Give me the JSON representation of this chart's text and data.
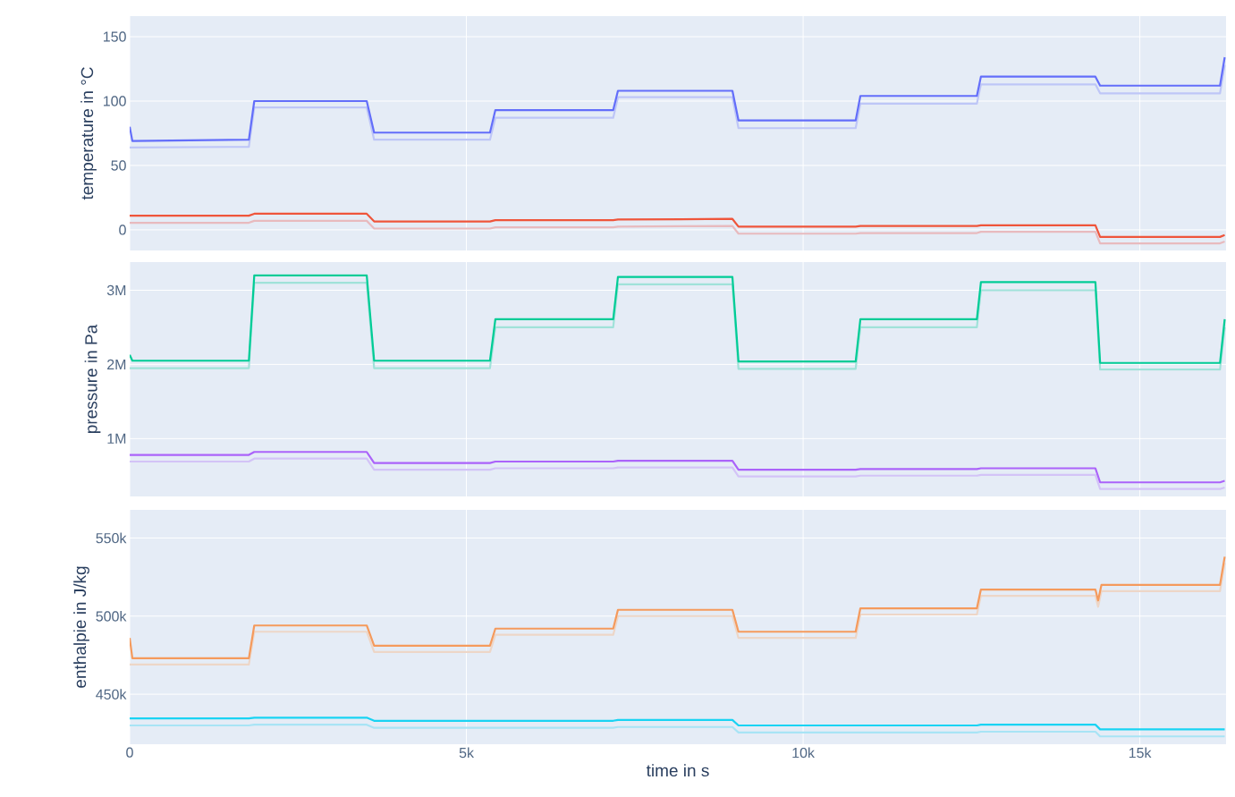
{
  "chart_data": [
    {
      "type": "line",
      "ylabel": "temperature in °C",
      "xlim": [
        0,
        16280
      ],
      "ylim": [
        -16,
        166
      ],
      "yticks": [
        0,
        50,
        100,
        150
      ],
      "xticks": [
        {
          "value": 0,
          "label": null
        },
        {
          "value": 5000,
          "label": null
        },
        {
          "value": 10000,
          "label": null
        },
        {
          "value": 15000,
          "label": null
        }
      ],
      "tick_labels": "y",
      "grid": true,
      "series": [
        {
          "color": "#bec6f7",
          "x": [
            0,
            40,
            1770,
            1850,
            3520,
            3630,
            5350,
            5430,
            7180,
            7250,
            8950,
            9040,
            10780,
            10850,
            12580,
            12640,
            14340,
            14410,
            16190,
            16260
          ],
          "values": [
            64,
            64,
            64.5,
            95,
            95,
            70,
            70,
            87,
            87,
            103,
            103,
            79,
            79,
            98,
            98,
            113,
            113,
            106,
            106,
            128
          ]
        },
        {
          "color": "#e8babe",
          "x": [
            0,
            40,
            1770,
            1850,
            3520,
            3630,
            5350,
            5430,
            7180,
            7250,
            8950,
            9040,
            10780,
            10850,
            12580,
            12640,
            14340,
            14410,
            16190,
            16260
          ],
          "values": [
            5.5,
            5.5,
            5.5,
            7,
            7,
            1,
            1,
            2,
            2,
            2.5,
            3,
            -3,
            -3,
            -2.5,
            -2.5,
            -1.5,
            -1.5,
            -10.5,
            -10.5,
            -9
          ]
        },
        {
          "color": "#636efa",
          "x": [
            0,
            40,
            1770,
            1850,
            3520,
            3630,
            5350,
            5430,
            7180,
            7250,
            8950,
            9040,
            10780,
            10850,
            12580,
            12640,
            14340,
            14410,
            16190,
            16260
          ],
          "values": [
            80,
            69,
            70,
            100,
            100,
            75.5,
            75.5,
            93,
            93,
            108,
            108,
            85,
            85,
            104,
            104,
            119,
            119,
            112,
            112,
            134
          ]
        },
        {
          "color": "#ef553b",
          "x": [
            0,
            40,
            1770,
            1850,
            3520,
            3630,
            5350,
            5430,
            7180,
            7250,
            8950,
            9040,
            10780,
            10850,
            12580,
            12640,
            14340,
            14410,
            16190,
            16260
          ],
          "values": [
            11,
            11,
            11,
            12.5,
            12.5,
            6.5,
            6.5,
            7.5,
            7.5,
            8,
            8.5,
            2.5,
            2.5,
            3,
            3,
            3.5,
            3.5,
            -5.5,
            -5.5,
            -4
          ]
        }
      ]
    },
    {
      "type": "line",
      "ylabel": "pressure in Pa",
      "xlim": [
        0,
        16280
      ],
      "ylim": [
        220000,
        3380000
      ],
      "yticks": [
        {
          "value": 1000000,
          "label": "1M"
        },
        {
          "value": 2000000,
          "label": "2M"
        },
        {
          "value": 3000000,
          "label": "3M"
        }
      ],
      "xticks": [
        {
          "value": 0,
          "label": null
        },
        {
          "value": 5000,
          "label": null
        },
        {
          "value": 10000,
          "label": null
        },
        {
          "value": 15000,
          "label": null
        }
      ],
      "tick_labels": "y",
      "grid": true,
      "series": [
        {
          "color": "#a0e2d9",
          "x": [
            0,
            40,
            1770,
            1850,
            3520,
            3630,
            5350,
            5430,
            7180,
            7250,
            8950,
            9040,
            10780,
            10850,
            12580,
            12640,
            14340,
            14410,
            16190,
            16260
          ],
          "values": [
            1950000,
            1950000,
            1950000,
            3100000,
            3100000,
            1950000,
            1950000,
            2500000,
            2500000,
            3080000,
            3080000,
            1940000,
            1940000,
            2500000,
            2500000,
            3000000,
            3000000,
            1930000,
            1930000,
            2500000
          ]
        },
        {
          "color": "#d3c3f7",
          "x": [
            0,
            40,
            1770,
            1850,
            3520,
            3630,
            5350,
            5430,
            7180,
            7250,
            8950,
            9040,
            10780,
            10850,
            12580,
            12640,
            14340,
            14410,
            16190,
            16260
          ],
          "values": [
            690000,
            690000,
            690000,
            730000,
            730000,
            580000,
            580000,
            600000,
            600000,
            610000,
            610000,
            490000,
            490000,
            500000,
            500000,
            510000,
            510000,
            320000,
            320000,
            340000
          ]
        },
        {
          "color": "#00cc96",
          "x": [
            0,
            40,
            1770,
            1850,
            3520,
            3630,
            5350,
            5430,
            7180,
            7250,
            8950,
            9040,
            10780,
            10850,
            12580,
            12640,
            14340,
            14410,
            16190,
            16260
          ],
          "values": [
            2130000,
            2050000,
            2050000,
            3200000,
            3200000,
            2050000,
            2050000,
            2610000,
            2610000,
            3180000,
            3180000,
            2040000,
            2040000,
            2610000,
            2610000,
            3110000,
            3110000,
            2020000,
            2020000,
            2610000
          ]
        },
        {
          "color": "#ab63fa",
          "x": [
            0,
            40,
            1770,
            1850,
            3520,
            3630,
            5350,
            5430,
            7180,
            7250,
            8950,
            9040,
            10780,
            10850,
            12580,
            12640,
            14340,
            14410,
            16190,
            16260
          ],
          "values": [
            780000,
            780000,
            780000,
            820000,
            820000,
            670000,
            670000,
            690000,
            690000,
            700000,
            700000,
            580000,
            580000,
            590000,
            590000,
            600000,
            600000,
            410000,
            410000,
            430000
          ]
        }
      ]
    },
    {
      "type": "line",
      "ylabel": "enthalpie in J/kg",
      "xlabel": "time in s",
      "xlim": [
        0,
        16280
      ],
      "ylim": [
        418000,
        568000
      ],
      "yticks": [
        {
          "value": 450000,
          "label": "450k"
        },
        {
          "value": 500000,
          "label": "500k"
        },
        {
          "value": 550000,
          "label": "550k"
        }
      ],
      "xticks": [
        {
          "value": 0,
          "label": "0"
        },
        {
          "value": 5000,
          "label": "5k"
        },
        {
          "value": 10000,
          "label": "10k"
        },
        {
          "value": 15000,
          "label": "15k"
        }
      ],
      "grid": true,
      "series": [
        {
          "color": "#edd6c7",
          "x": [
            0,
            40,
            1770,
            1850,
            3520,
            3630,
            5350,
            5430,
            7180,
            7250,
            8950,
            9040,
            10780,
            10850,
            12580,
            12640,
            14340,
            14380,
            14430,
            16190,
            16260
          ],
          "values": [
            469000,
            469000,
            469000,
            490000,
            490000,
            477000,
            477000,
            488000,
            488000,
            500000,
            500000,
            486000,
            486000,
            501000,
            501000,
            513000,
            513000,
            506000,
            516000,
            516000,
            534000
          ]
        },
        {
          "color": "#a8e4f5",
          "x": [
            0,
            40,
            1770,
            1850,
            3520,
            3630,
            5350,
            5430,
            7180,
            7250,
            8950,
            9040,
            10780,
            10850,
            12580,
            12640,
            14340,
            14410,
            16190,
            16260
          ],
          "values": [
            430000,
            430000,
            430000,
            430500,
            430500,
            428500,
            428500,
            428500,
            428500,
            429000,
            429000,
            425500,
            425500,
            425500,
            425500,
            426000,
            426000,
            423000,
            423000,
            423000
          ]
        },
        {
          "color": "#f59a5c",
          "x": [
            0,
            40,
            1770,
            1850,
            3520,
            3630,
            5350,
            5430,
            7180,
            7250,
            8950,
            9040,
            10780,
            10850,
            12580,
            12640,
            14340,
            14380,
            14430,
            16190,
            16260
          ],
          "values": [
            486000,
            473000,
            473000,
            494000,
            494000,
            481000,
            481000,
            492000,
            492000,
            504000,
            504000,
            490000,
            490000,
            505000,
            505000,
            517000,
            517000,
            510000,
            520000,
            520000,
            538000
          ]
        },
        {
          "color": "#19d3f3",
          "x": [
            0,
            40,
            1770,
            1850,
            3520,
            3630,
            5350,
            5430,
            7180,
            7250,
            8950,
            9040,
            10780,
            10850,
            12580,
            12640,
            14340,
            14410,
            16190,
            16260
          ],
          "values": [
            434500,
            434500,
            434500,
            435000,
            435000,
            433000,
            433000,
            433000,
            433000,
            433500,
            433500,
            430000,
            430000,
            430000,
            430000,
            430500,
            430500,
            427500,
            427500,
            427500
          ]
        }
      ]
    }
  ]
}
